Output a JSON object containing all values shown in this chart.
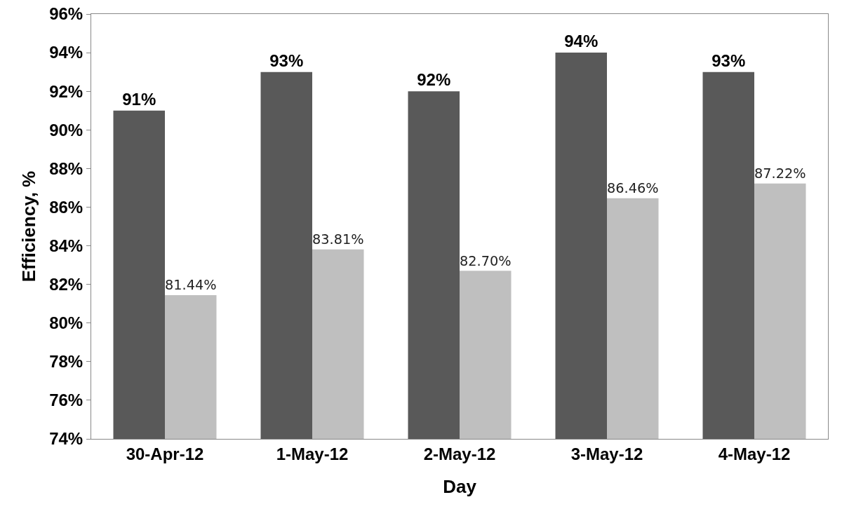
{
  "chart_data": {
    "type": "bar",
    "xlabel": "Day",
    "ylabel": "Efficiency, %",
    "categories": [
      "30-Apr-12",
      "1-May-12",
      "2-May-12",
      "3-May-12",
      "4-May-12"
    ],
    "series": [
      {
        "color": "#595959",
        "values": [
          91,
          93,
          92,
          94,
          93
        ],
        "value_labels": [
          "91%",
          "93%",
          "92%",
          "94%",
          "93%"
        ]
      },
      {
        "color": "#bfbfbf",
        "values": [
          81.44,
          83.81,
          82.7,
          86.46,
          87.22
        ],
        "value_labels": [
          "81.44%",
          "83.81%",
          "82.70%",
          "86.46%",
          "87.22%"
        ]
      }
    ],
    "ylim": [
      74,
      96
    ],
    "yticks": [
      {
        "value": 74,
        "label": "74%"
      },
      {
        "value": 76,
        "label": "76%"
      },
      {
        "value": 78,
        "label": "78%"
      },
      {
        "value": 80,
        "label": "80%"
      },
      {
        "value": 82,
        "label": "82%"
      },
      {
        "value": 84,
        "label": "84%"
      },
      {
        "value": 86,
        "label": "86%"
      },
      {
        "value": 88,
        "label": "88%"
      },
      {
        "value": 90,
        "label": "90%"
      },
      {
        "value": 92,
        "label": "92%"
      },
      {
        "value": 94,
        "label": "94%"
      },
      {
        "value": 96,
        "label": "96%"
      }
    ],
    "grid": false
  }
}
